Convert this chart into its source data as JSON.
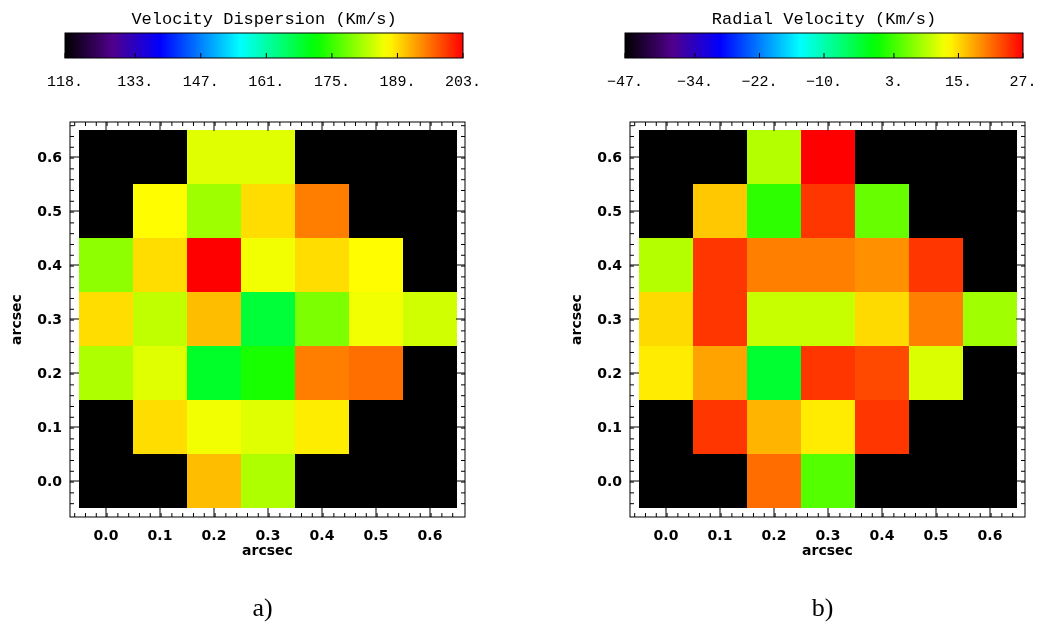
{
  "chart_data": [
    {
      "type": "heatmap",
      "clabel": "Velocity Dispersion (Km/s)",
      "xlabel": "arcsec",
      "ylabel": "arcsec",
      "categories": [
        "0.0",
        "0.1",
        "0.2",
        "0.3",
        "0.4",
        "0.5",
        "0.6"
      ],
      "y_categories": [
        "0.6",
        "0.5",
        "0.4",
        "0.3",
        "0.2",
        "0.1",
        "0.0"
      ],
      "cells": [
        [
          null,
          null,
          185,
          185,
          null,
          null,
          null
        ],
        [
          null,
          187,
          181,
          189,
          195,
          null,
          null
        ],
        [
          180,
          189,
          203,
          186,
          189,
          187,
          null
        ],
        [
          189,
          183,
          191,
          168,
          179,
          186,
          184
        ],
        [
          182,
          185,
          169,
          173,
          195,
          196,
          null
        ],
        [
          null,
          189,
          186,
          185,
          188,
          null,
          null
        ],
        [
          null,
          null,
          191,
          182,
          null,
          null,
          null
        ]
      ],
      "clim": [
        118,
        203
      ],
      "cticks": [
        {
          "value": 118,
          "label": "118."
        },
        {
          "value": 133,
          "label": "133."
        },
        {
          "value": 147,
          "label": "147."
        },
        {
          "value": 161,
          "label": "161."
        },
        {
          "value": 175,
          "label": "175."
        },
        {
          "value": 189,
          "label": "189."
        },
        {
          "value": 203,
          "label": "203."
        }
      ],
      "annotations": [
        "a)"
      ]
    },
    {
      "type": "heatmap",
      "clabel": "Radial Velocity (Km/s)",
      "xlabel": "arcsec",
      "ylabel": "arcsec",
      "categories": [
        "0.0",
        "0.1",
        "0.2",
        "0.3",
        "0.4",
        "0.5",
        "0.6"
      ],
      "y_categories": [
        "0.6",
        "0.5",
        "0.4",
        "0.3",
        "0.2",
        "0.1",
        "0.0"
      ],
      "cells": [
        [
          null,
          null,
          9,
          27,
          null,
          null,
          null
        ],
        [
          null,
          16,
          2,
          24,
          5,
          null,
          null
        ],
        [
          9,
          24,
          20,
          20,
          19,
          24,
          null
        ],
        [
          15,
          24,
          10,
          10,
          15,
          20,
          8
        ],
        [
          14,
          18,
          -3,
          24,
          23,
          11,
          null
        ],
        [
          null,
          24,
          17,
          14,
          24,
          null,
          null
        ],
        [
          null,
          null,
          21,
          4,
          null,
          null,
          null
        ]
      ],
      "clim": [
        -47,
        27
      ],
      "cticks": [
        {
          "value": -47,
          "label": "−47."
        },
        {
          "value": -34,
          "label": "−34."
        },
        {
          "value": -22,
          "label": "−22."
        },
        {
          "value": -10,
          "label": "−10."
        },
        {
          "value": 3,
          "label": "3."
        },
        {
          "value": 15,
          "label": "15."
        },
        {
          "value": 27,
          "label": "27."
        }
      ],
      "annotations": [
        "b)"
      ]
    }
  ]
}
